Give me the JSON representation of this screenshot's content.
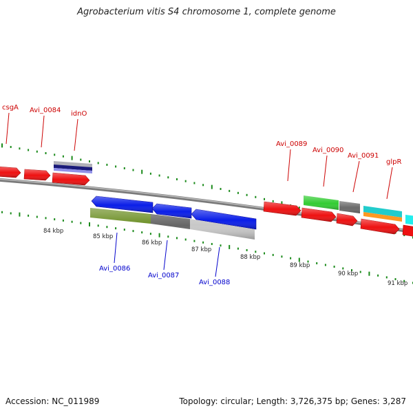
{
  "title": "Agrobacterium vitis S4 chromosome 1, complete genome",
  "footer": {
    "accession": "Accession: NC_011989",
    "summary": "Topology: circular; Length: 3,726,375 bp; Genes: 3,287"
  },
  "scale_ticks": [
    {
      "label": "84 kbp"
    },
    {
      "label": "85 kbp"
    },
    {
      "label": "86 kbp"
    },
    {
      "label": "87 kbp"
    },
    {
      "label": "88 kbp"
    },
    {
      "label": "89 kbp"
    },
    {
      "label": "90 kbp"
    },
    {
      "label": "91 kbp"
    }
  ],
  "genes_forward": [
    {
      "name": "csgA"
    },
    {
      "name": "Avi_0084"
    },
    {
      "name": "idnO"
    },
    {
      "name": "Avi_0089"
    },
    {
      "name": "Avi_0090"
    },
    {
      "name": "Avi_0091"
    },
    {
      "name": "glpR"
    }
  ],
  "genes_reverse": [
    {
      "name": "Avi_0086"
    },
    {
      "name": "Avi_0087"
    },
    {
      "name": "Avi_0088"
    }
  ],
  "colors": {
    "forward_label": "#cc0000",
    "reverse_label": "#0000cc",
    "cds_red": "#ee1111",
    "cds_blue": "#0a1ee8",
    "backbone": "#808080",
    "tick_green": "#1a8a1a",
    "olive": "#6b8e23",
    "dark_gray": "#666666",
    "light_gray": "#c8c8c8",
    "green": "#33cc33",
    "cyan": "#22cccc",
    "orange": "#ff9922",
    "navy": "#1a1a7a"
  }
}
